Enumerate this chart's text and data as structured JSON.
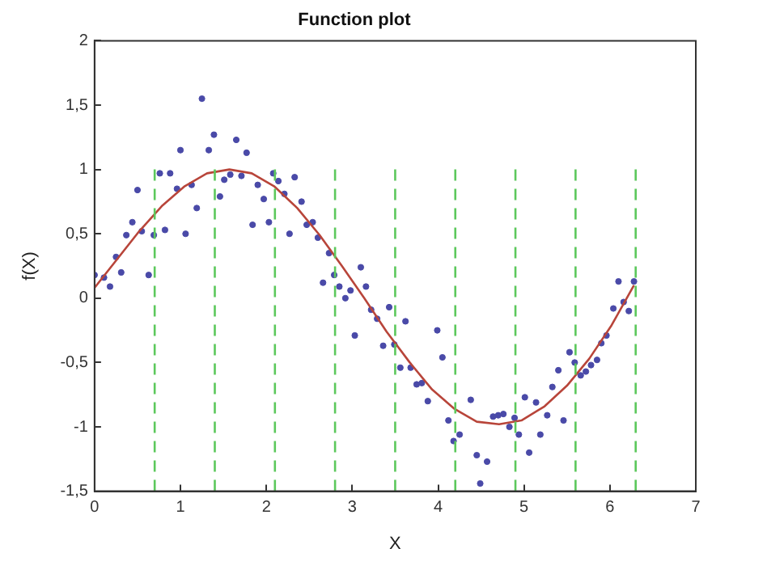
{
  "chart_data": {
    "type": "scatter",
    "title": "Function plot",
    "xlabel": "X",
    "ylabel": "f(X)",
    "xlim": [
      0,
      7
    ],
    "xticks": [
      0,
      1,
      2,
      3,
      4,
      5,
      6,
      7
    ],
    "ylim": [
      -1.5,
      2
    ],
    "yticks": [
      {
        "value": -1.5,
        "label": "-1,5"
      },
      -1,
      {
        "value": -0.5,
        "label": "-0,5"
      },
      0,
      {
        "value": 0.5,
        "label": "0,5"
      },
      1,
      {
        "value": 1.5,
        "label": "1,5"
      },
      2
    ],
    "grid": false,
    "legend": false,
    "series": [
      {
        "type": "line",
        "color": "#5cc85c",
        "line_style": "dashed",
        "marker": "none",
        "x": [
          0.7,
          0.7
        ],
        "values": [
          -1.5,
          1
        ]
      },
      {
        "type": "line",
        "color": "#5cc85c",
        "line_style": "dashed",
        "marker": "none",
        "x": [
          1.4,
          1.4
        ],
        "values": [
          -1.5,
          1
        ]
      },
      {
        "type": "line",
        "color": "#5cc85c",
        "line_style": "dashed",
        "marker": "none",
        "x": [
          2.1,
          2.1
        ],
        "values": [
          -1.5,
          1
        ]
      },
      {
        "type": "line",
        "color": "#5cc85c",
        "line_style": "dashed",
        "marker": "none",
        "x": [
          2.8,
          2.8
        ],
        "values": [
          -1.5,
          1
        ]
      },
      {
        "type": "line",
        "color": "#5cc85c",
        "line_style": "dashed",
        "marker": "none",
        "x": [
          3.5,
          3.5
        ],
        "values": [
          -1.5,
          1
        ]
      },
      {
        "type": "line",
        "color": "#5cc85c",
        "line_style": "dashed",
        "marker": "none",
        "x": [
          4.2,
          4.2
        ],
        "values": [
          -1.5,
          1
        ]
      },
      {
        "type": "line",
        "color": "#5cc85c",
        "line_style": "dashed",
        "marker": "none",
        "x": [
          4.9,
          4.9
        ],
        "values": [
          -1.5,
          1
        ]
      },
      {
        "type": "line",
        "color": "#5cc85c",
        "line_style": "dashed",
        "marker": "none",
        "x": [
          5.6,
          5.6
        ],
        "values": [
          -1.5,
          1
        ]
      },
      {
        "type": "line",
        "color": "#5cc85c",
        "line_style": "dashed",
        "marker": "none",
        "x": [
          6.3,
          6.3
        ],
        "values": [
          -1.5,
          1
        ]
      },
      {
        "type": "line",
        "color": "#b8453a",
        "line_style": "solid",
        "marker": "none",
        "x": [
          0,
          0.26,
          0.52,
          0.79,
          1.05,
          1.31,
          1.57,
          1.83,
          2.09,
          2.36,
          2.62,
          2.88,
          3.14,
          3.4,
          3.67,
          3.93,
          4.19,
          4.45,
          4.71,
          4.97,
          5.24,
          5.5,
          5.76,
          6.02,
          6.28
        ],
        "values": [
          0.08,
          0.3,
          0.52,
          0.72,
          0.87,
          0.97,
          1,
          0.97,
          0.87,
          0.7,
          0.49,
          0.25,
          0,
          -0.26,
          -0.5,
          -0.71,
          -0.86,
          -0.96,
          -0.98,
          -0.95,
          -0.84,
          -0.68,
          -0.47,
          -0.21,
          0.1
        ]
      },
      {
        "type": "scatter",
        "color": "#4a4aa8",
        "marker": "circle",
        "x": [
          0,
          0.11,
          0.18,
          0.25,
          0.31,
          0.37,
          0.44,
          0.5,
          0.55,
          0.63,
          0.69,
          0.76,
          0.82,
          0.88,
          0.96,
          1,
          1.06,
          1.13,
          1.19,
          1.25,
          1.33,
          1.39,
          1.46,
          1.51,
          1.58,
          1.65,
          1.71,
          1.77,
          1.84,
          1.9,
          1.97,
          2.03,
          2.08,
          2.14,
          2.21,
          2.27,
          2.33,
          2.41,
          2.47,
          2.54,
          2.6,
          2.66,
          2.73,
          2.79,
          2.85,
          2.92,
          2.98,
          3.03,
          3.1,
          3.16,
          3.22,
          3.29,
          3.36,
          3.43,
          3.49,
          3.56,
          3.62,
          3.68,
          3.75,
          3.81,
          3.88,
          3.99,
          4.05,
          4.12,
          4.18,
          4.25,
          4.38,
          4.45,
          4.49,
          4.57,
          4.64,
          4.7,
          4.76,
          4.83,
          4.89,
          4.94,
          5.01,
          5.06,
          5.14,
          5.19,
          5.27,
          5.33,
          5.4,
          5.46,
          5.53,
          5.59,
          5.66,
          5.72,
          5.78,
          5.85,
          5.9,
          5.96,
          6.04,
          6.1,
          6.16,
          6.22,
          6.28
        ],
        "values": [
          0.18,
          0.16,
          0.09,
          0.32,
          0.2,
          0.49,
          0.59,
          0.84,
          0.52,
          0.18,
          0.49,
          0.97,
          0.53,
          0.97,
          0.85,
          1.15,
          0.5,
          0.88,
          0.7,
          1.55,
          1.15,
          1.27,
          0.79,
          0.92,
          0.96,
          1.23,
          0.95,
          1.13,
          0.57,
          0.88,
          0.77,
          0.59,
          0.97,
          0.91,
          0.81,
          0.5,
          0.94,
          0.75,
          0.57,
          0.59,
          0.47,
          0.12,
          0.35,
          0.18,
          0.09,
          0,
          0.06,
          -0.29,
          0.24,
          0.09,
          -0.09,
          -0.16,
          -0.37,
          -0.07,
          -0.36,
          -0.54,
          -0.18,
          -0.54,
          -0.67,
          -0.66,
          -0.8,
          -0.25,
          -0.46,
          -0.95,
          -1.11,
          -1.06,
          -0.79,
          -1.22,
          -1.44,
          -1.27,
          -0.92,
          -0.91,
          -0.9,
          -1,
          -0.93,
          -1.06,
          -0.77,
          -1.2,
          -0.81,
          -1.06,
          -0.91,
          -0.69,
          -0.56,
          -0.95,
          -0.42,
          -0.5,
          -0.6,
          -0.57,
          -0.52,
          -0.48,
          -0.35,
          -0.29,
          -0.08,
          0.13,
          -0.03,
          -0.1,
          0.13
        ]
      }
    ]
  }
}
